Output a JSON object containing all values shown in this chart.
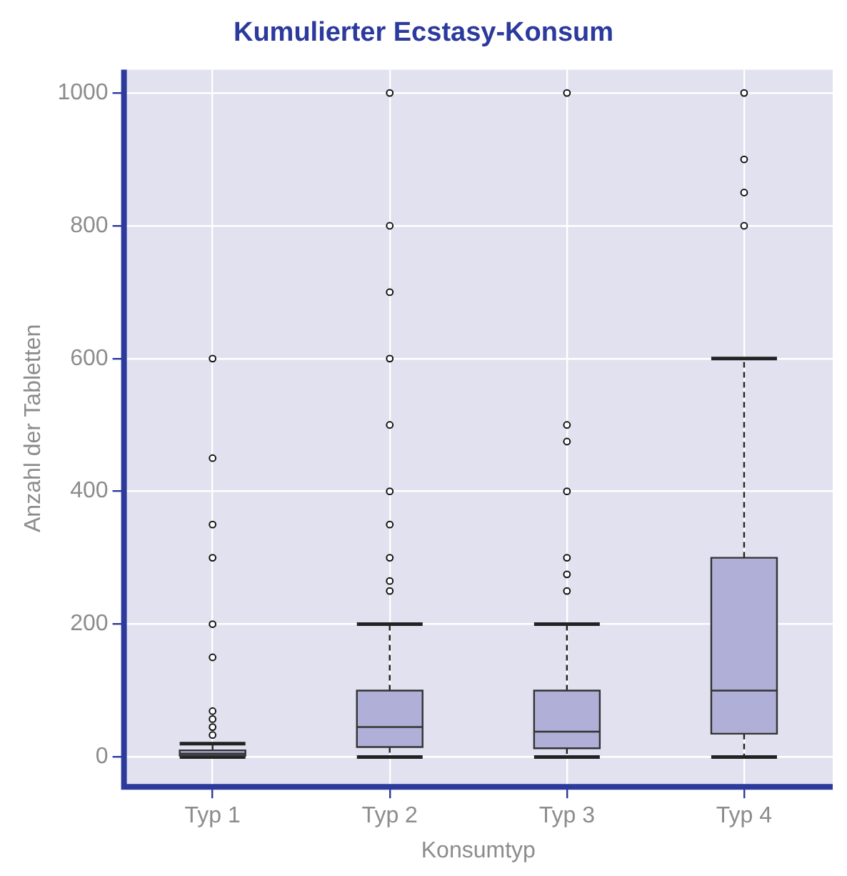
{
  "chart_data": {
    "type": "box",
    "title": "Kumulierter Ecstasy-Konsum",
    "xlabel": "Konsumtyp",
    "ylabel": "Anzahl der Tabletten",
    "categories": [
      "Typ 1",
      "Typ 2",
      "Typ 3",
      "Typ 4"
    ],
    "boxes": [
      {
        "low": 0,
        "q1": 2,
        "median": 5,
        "q3": 10,
        "high": 20,
        "outliers": [
          33,
          45,
          57,
          69,
          150,
          200,
          300,
          350,
          450,
          600
        ]
      },
      {
        "low": 0,
        "q1": 15,
        "median": 45,
        "q3": 100,
        "high": 200,
        "outliers": [
          250,
          265,
          300,
          350,
          400,
          500,
          600,
          700,
          800,
          1000
        ]
      },
      {
        "low": 0,
        "q1": 13,
        "median": 38,
        "q3": 100,
        "high": 200,
        "outliers": [
          250,
          275,
          300,
          400,
          475,
          500,
          1000
        ]
      },
      {
        "low": 0,
        "q1": 35,
        "median": 100,
        "q3": 300,
        "high": 600,
        "outliers": [
          800,
          850,
          900,
          1000
        ]
      }
    ],
    "color": "#afafd8",
    "ylim": [
      -45,
      1035
    ],
    "yticks": [
      0,
      200,
      400,
      600,
      800,
      1000
    ],
    "grid": true,
    "legend": false
  }
}
